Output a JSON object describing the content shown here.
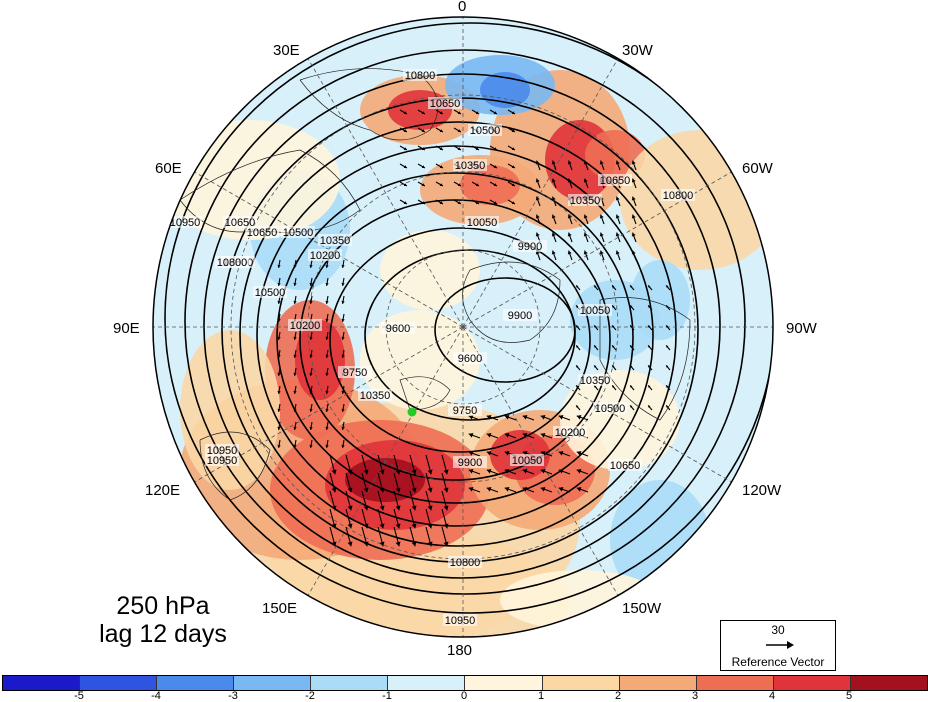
{
  "title": {
    "line1": "250 hPa",
    "line2": "lag 12 days"
  },
  "longitude_labels": {
    "top": "0",
    "bottom": "180",
    "left": "90E",
    "right": "90W",
    "ne": "30W",
    "nw": "30E",
    "ene": "60W",
    "wnw": "60E",
    "ese": "120W",
    "wsw": "120E",
    "se": "150W",
    "sw": "150E"
  },
  "reference_vector": {
    "magnitude": "30",
    "label": "Reference Vector"
  },
  "colorbar": {
    "colors": [
      "#1a1ac8",
      "#2f55e0",
      "#4a8aea",
      "#79b8f2",
      "#aadcf7",
      "#d8f0f9",
      "#fff5dc",
      "#fbd7a6",
      "#f4aa78",
      "#ee6e54",
      "#e0343a",
      "#a3101e"
    ],
    "ticks": [
      "-5",
      "-4",
      "-3",
      "-2",
      "-1",
      "0",
      "1",
      "2",
      "3",
      "4",
      "5"
    ]
  },
  "contour_labels": [
    "10800",
    "10650",
    "10500",
    "10350",
    "10050",
    "9900",
    "9600",
    "9600",
    "9750",
    "9750",
    "9900",
    "10200",
    "10350",
    "10500",
    "10650",
    "10800",
    "10950",
    "10950",
    "10800",
    "10650",
    "10500",
    "10350",
    "10200",
    "10050",
    "9900",
    "10050",
    "10350",
    "10650",
    "10800",
    "10950",
    "10500",
    "10200",
    "10350",
    "10650",
    "10800",
    "10950"
  ],
  "marker_color": "#22cc22",
  "projection": "north-polar-stereographic"
}
